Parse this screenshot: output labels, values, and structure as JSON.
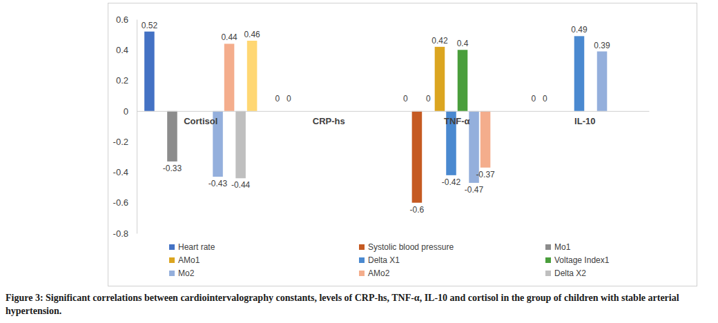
{
  "chart_data": {
    "type": "bar",
    "caption": "Figure 3: Significant correlations between cardiointervalography constants, levels of CRP-hs, TNF-α, IL-10 and cortisol in the group of children with stable arterial hypertension.",
    "categories": [
      "Cortisol",
      "CRP-hs",
      "TNF-α",
      "IL-10"
    ],
    "series": [
      {
        "name": "Heart rate",
        "color": "#4472c4",
        "values": [
          0.52,
          0,
          0,
          0
        ]
      },
      {
        "name": "Systolic blood pressure",
        "color": "#c55a22",
        "values": [
          null,
          0,
          -0.6,
          0
        ]
      },
      {
        "name": "Mo1",
        "color": "#8c8c8c",
        "values": [
          -0.33,
          null,
          0,
          null
        ]
      },
      {
        "name": "AMo1",
        "color": "#dba520",
        "values": [
          null,
          null,
          0.42,
          null
        ]
      },
      {
        "name": "Delta X1",
        "color": "#4a89d0",
        "values": [
          null,
          null,
          -0.42,
          0.49
        ]
      },
      {
        "name": "Voltage Index1",
        "color": "#4a9e3c",
        "values": [
          null,
          null,
          0.4,
          null
        ]
      },
      {
        "name": "Mo2",
        "color": "#94afdc",
        "values": [
          -0.43,
          null,
          -0.47,
          0.39
        ]
      },
      {
        "name": "AMo2",
        "color": "#f4ad8c",
        "values": [
          0.44,
          null,
          -0.37,
          null
        ]
      },
      {
        "name": "Delta X2",
        "color": "#bfbfbf",
        "values": [
          -0.44,
          null,
          null,
          null
        ]
      },
      {
        "name": null,
        "color": "#ffd773",
        "values": [
          0.46,
          null,
          null,
          null
        ]
      }
    ],
    "ylim": [
      -0.8,
      0.6
    ],
    "yticks": [
      -0.8,
      -0.6,
      -0.4,
      -0.2,
      0,
      0.2,
      0.4,
      0.6
    ],
    "grid": false,
    "legend": "bottom",
    "data_labels": true
  }
}
